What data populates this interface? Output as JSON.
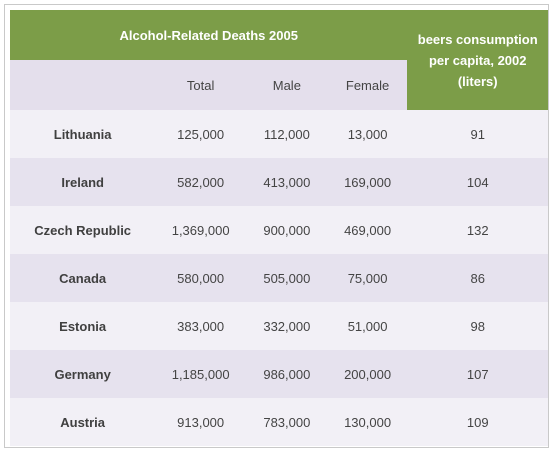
{
  "chart_data": {
    "type": "table",
    "title": "Alcohol-Related Deaths 2005",
    "consumption_header": "beers consumption per capita, 2002 (liters)",
    "columns": [
      "",
      "Total",
      "Male",
      "Female"
    ],
    "rows": [
      {
        "country": "Lithuania",
        "total": "125,000",
        "male": "112,000",
        "female": "13,000",
        "consumption": "91"
      },
      {
        "country": "Ireland",
        "total": "582,000",
        "male": "413,000",
        "female": "169,000",
        "consumption": "104"
      },
      {
        "country": "Czech Republic",
        "total": "1,369,000",
        "male": "900,000",
        "female": "469,000",
        "consumption": "132"
      },
      {
        "country": "Canada",
        "total": "580,000",
        "male": "505,000",
        "female": "75,000",
        "consumption": "86"
      },
      {
        "country": "Estonia",
        "total": "383,000",
        "male": "332,000",
        "female": "51,000",
        "consumption": "98"
      },
      {
        "country": "Germany",
        "total": "1,185,000",
        "male": "986,000",
        "female": "200,000",
        "consumption": "107"
      },
      {
        "country": "Austria",
        "total": "913,000",
        "male": "783,000",
        "female": "130,000",
        "consumption": "109"
      }
    ]
  },
  "colors": {
    "header_green": "#7c9d48",
    "subheader_lavender": "#e4dfec",
    "row_light": "#f2f0f6",
    "row_dark": "#e6e2ee",
    "text": "#444444"
  }
}
